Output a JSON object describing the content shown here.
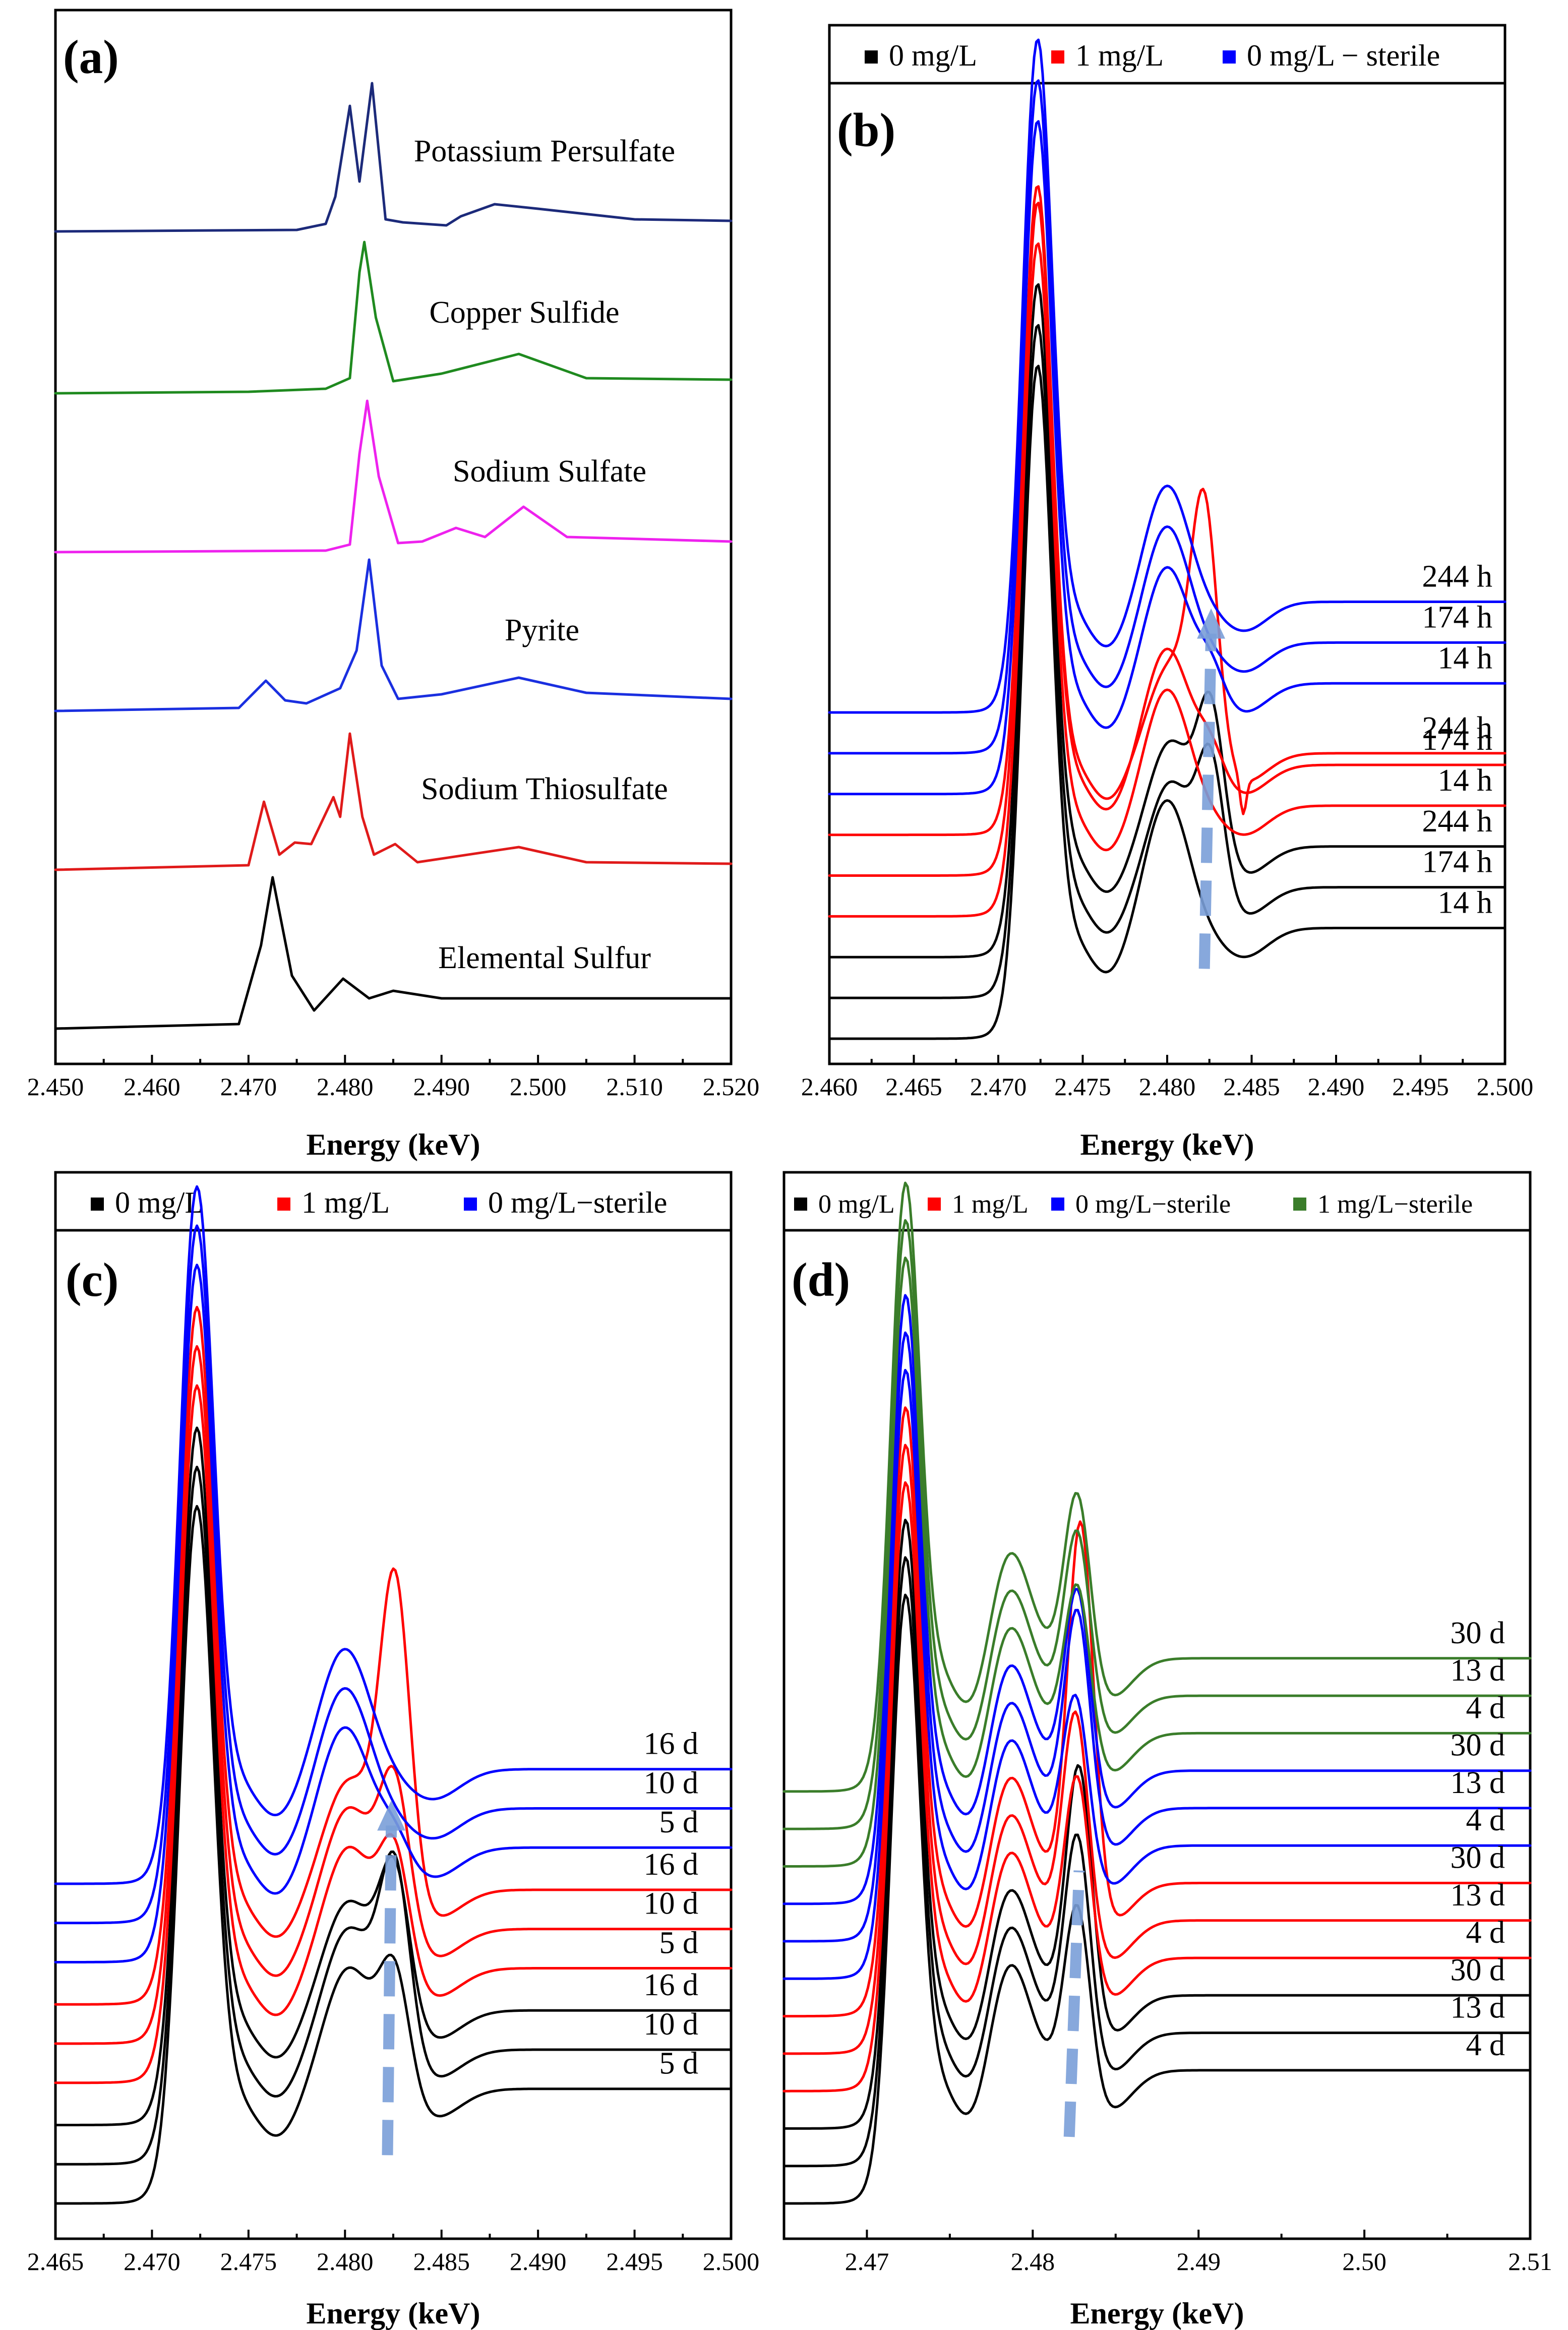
{
  "chart_data": [
    {
      "id": "a",
      "type": "line",
      "panel_label": "(a)",
      "xlabel": "Energy (keV)",
      "ylabel": "",
      "xlim": [
        2.45,
        2.52
      ],
      "xticks": [
        "2.450",
        "2.460",
        "2.470",
        "2.480",
        "2.490",
        "2.500",
        "2.510",
        "2.520"
      ],
      "legend": [],
      "series": [
        {
          "name": "Potassium Persulfate",
          "color": "#1c2a7a",
          "x": [
            2.45,
            2.475,
            2.478,
            2.479,
            2.4805,
            2.4815,
            2.4828,
            2.4842,
            2.486,
            2.4905,
            2.492,
            2.4955,
            2.5,
            2.51,
            2.52
          ],
          "y": [
            0.02,
            0.03,
            0.07,
            0.25,
            0.85,
            0.35,
            1.0,
            0.1,
            0.08,
            0.06,
            0.12,
            0.2,
            0.17,
            0.1,
            0.09
          ]
        },
        {
          "name": "Copper Sulfide",
          "color": "#1f8a1f",
          "x": [
            2.45,
            2.47,
            2.478,
            2.4805,
            2.4815,
            2.482,
            2.4832,
            2.485,
            2.49,
            2.498,
            2.505,
            2.52
          ],
          "y": [
            0.0,
            0.01,
            0.03,
            0.1,
            0.8,
            1.0,
            0.5,
            0.08,
            0.13,
            0.26,
            0.1,
            0.09
          ]
        },
        {
          "name": "Sodium Sulfate",
          "color": "#ee22ee",
          "x": [
            2.45,
            2.478,
            2.4805,
            2.4815,
            2.4823,
            2.4835,
            2.4855,
            2.488,
            2.4915,
            2.4945,
            2.4985,
            2.503,
            2.52
          ],
          "y": [
            0.0,
            0.01,
            0.05,
            0.65,
            1.0,
            0.5,
            0.06,
            0.07,
            0.16,
            0.1,
            0.3,
            0.1,
            0.07
          ]
        },
        {
          "name": "Pyrite",
          "color": "#1a2fe0",
          "x": [
            2.45,
            2.469,
            2.4718,
            2.4738,
            2.476,
            2.4795,
            2.4812,
            2.4825,
            2.4838,
            2.4855,
            2.49,
            2.498,
            2.505,
            2.52
          ],
          "y": [
            0.0,
            0.02,
            0.2,
            0.07,
            0.05,
            0.15,
            0.4,
            1.0,
            0.3,
            0.08,
            0.11,
            0.22,
            0.12,
            0.08
          ]
        },
        {
          "name": "Sodium Thiosulfate",
          "color": "#e01a1a",
          "x": [
            2.45,
            2.47,
            2.4716,
            2.4732,
            2.4748,
            2.4765,
            2.4788,
            2.4795,
            2.4805,
            2.4818,
            2.483,
            2.4852,
            2.4875,
            2.498,
            2.505,
            2.52
          ],
          "y": [
            0.0,
            0.03,
            0.45,
            0.1,
            0.18,
            0.17,
            0.48,
            0.35,
            0.9,
            0.35,
            0.1,
            0.17,
            0.05,
            0.15,
            0.05,
            0.04
          ]
        },
        {
          "name": "Elemental Sulfur",
          "color": "#000000",
          "x": [
            2.45,
            2.469,
            2.4713,
            2.4725,
            2.4745,
            2.4768,
            2.4798,
            2.4825,
            2.485,
            2.49,
            2.52
          ],
          "y": [
            0.0,
            0.03,
            0.55,
            1.0,
            0.35,
            0.12,
            0.33,
            0.2,
            0.25,
            0.2,
            0.2
          ]
        }
      ]
    },
    {
      "id": "b",
      "type": "line",
      "panel_label": "(b)",
      "xlabel": "Energy (keV)",
      "ylabel": "",
      "xlim": [
        2.46,
        2.5
      ],
      "xticks": [
        "2.460",
        "2.465",
        "2.470",
        "2.475",
        "2.480",
        "2.485",
        "2.490",
        "2.495",
        "2.500"
      ],
      "legend": [
        {
          "label": "0 mg/L",
          "color": "#000000"
        },
        {
          "label": "1 mg/L",
          "color": "#ff0000"
        },
        {
          "label": "0 mg/L − sterile",
          "color": "#0000ff"
        }
      ],
      "arrow": {
        "from": [
          2.4822,
          0.12
        ],
        "to": [
          2.4826,
          0.73
        ]
      },
      "series": [
        {
          "name": "0 mg/L 14 h",
          "label": "14 h",
          "color": "#000000",
          "base": 0.0,
          "baseline": 0.06,
          "main_peak": 1.0,
          "dip": 0.02,
          "shoulder": 0.22,
          "shoulder_x": 2.48,
          "peak2": 0.0,
          "peak2_x": 2.4825,
          "plateau": 0.19,
          "spike": 0.0
        },
        {
          "name": "0 mg/L 174 h",
          "label": "174 h",
          "color": "#000000",
          "base": 0.07,
          "baseline": 0.06,
          "main_peak": 1.0,
          "dip": 0.03,
          "shoulder": 0.18,
          "shoulder_x": 2.4802,
          "peak2": 0.23,
          "peak2_x": 2.4826,
          "plateau": 0.19,
          "spike": 0.0
        },
        {
          "name": "0 mg/L 244 h",
          "label": "244 h",
          "color": "#000000",
          "base": 0.14,
          "baseline": 0.06,
          "main_peak": 1.0,
          "dip": 0.03,
          "shoulder": 0.18,
          "shoulder_x": 2.4802,
          "peak2": 0.25,
          "peak2_x": 2.4826,
          "plateau": 0.19,
          "spike": 0.0
        },
        {
          "name": "1 mg/L 14 h",
          "label": "14 h",
          "color": "#ff0000",
          "base": 0.21,
          "baseline": 0.06,
          "main_peak": 1.0,
          "dip": 0.02,
          "shoulder": 0.2,
          "shoulder_x": 2.48,
          "peak2": 0.0,
          "peak2_x": 2.4825,
          "plateau": 0.19,
          "spike": 0.0
        },
        {
          "name": "1 mg/L 174 h",
          "label": "174 h",
          "color": "#ff0000",
          "base": 0.28,
          "baseline": 0.06,
          "main_peak": 1.0,
          "dip": 0.02,
          "shoulder": 0.2,
          "shoulder_x": 2.48,
          "peak2": 0.05,
          "peak2_x": 2.4826,
          "plateau": 0.19,
          "spike": 0.0
        },
        {
          "name": "1 mg/L 244 h",
          "label": "244 h",
          "color": "#ff0000",
          "base": 0.35,
          "baseline": 0.06,
          "main_peak": 1.0,
          "dip": 0.04,
          "shoulder": 0.15,
          "shoulder_x": 2.4802,
          "peak2": 0.42,
          "peak2_x": 2.4822,
          "plateau": 0.14,
          "spike": 0.06
        },
        {
          "name": "0 mg/L − sterile 14 h",
          "label": "14 h",
          "color": "#0000ff",
          "base": 0.42,
          "baseline": 0.06,
          "main_peak": 1.0,
          "dip": 0.02,
          "shoulder": 0.2,
          "shoulder_x": 2.48,
          "peak2": 0.05,
          "peak2_x": 2.4826,
          "plateau": 0.19,
          "spike": 0.0
        },
        {
          "name": "0 mg/L − sterile 174 h",
          "label": "174 h",
          "color": "#0000ff",
          "base": 0.49,
          "baseline": 0.06,
          "main_peak": 1.0,
          "dip": 0.02,
          "shoulder": 0.2,
          "shoulder_x": 2.48,
          "peak2": 0.0,
          "peak2_x": 2.4825,
          "plateau": 0.19,
          "spike": 0.0
        },
        {
          "name": "0 mg/L − sterile 244 h",
          "label": "244 h",
          "color": "#0000ff",
          "base": 0.56,
          "baseline": 0.06,
          "main_peak": 1.0,
          "dip": 0.02,
          "shoulder": 0.2,
          "shoulder_x": 2.48,
          "peak2": 0.0,
          "peak2_x": 2.4825,
          "plateau": 0.19,
          "spike": 0.0
        }
      ]
    },
    {
      "id": "c",
      "type": "line",
      "panel_label": "(c)",
      "xlabel": "Energy (keV)",
      "ylabel": "",
      "xlim": [
        2.465,
        2.5
      ],
      "xticks": [
        "2.465",
        "2.470",
        "2.475",
        "2.480",
        "2.485",
        "2.490",
        "2.495",
        "2.500"
      ],
      "legend": [
        {
          "label": "0 mg/L",
          "color": "#000000"
        },
        {
          "label": "1 mg/L",
          "color": "#ff0000"
        },
        {
          "label": "0 mg/L−sterile",
          "color": "#0000ff"
        }
      ],
      "arrow": {
        "from": [
          2.4822,
          0.08
        ],
        "to": [
          2.4824,
          0.66
        ]
      },
      "series": [
        {
          "name": "0 mg/L 5 d",
          "label": "5 d",
          "color": "#000000",
          "base": 0.0,
          "baseline": 0.06,
          "main_peak": 1.0,
          "dip": 0.03,
          "shoulder": 0.2,
          "shoulder_x": 2.4802,
          "peak2": 0.2,
          "peak2_x": 2.4826,
          "plateau": 0.19,
          "spike": 0.0
        },
        {
          "name": "0 mg/L 10 d",
          "label": "10 d",
          "color": "#000000",
          "base": 0.065,
          "baseline": 0.06,
          "main_peak": 1.0,
          "dip": 0.03,
          "shoulder": 0.2,
          "shoulder_x": 2.4802,
          "peak2": 0.31,
          "peak2_x": 2.4826,
          "plateau": 0.19,
          "spike": 0.0
        },
        {
          "name": "0 mg/L 16 d",
          "label": "16 d",
          "color": "#000000",
          "base": 0.13,
          "baseline": 0.06,
          "main_peak": 1.0,
          "dip": 0.03,
          "shoulder": 0.18,
          "shoulder_x": 2.4802,
          "peak2": 0.24,
          "peak2_x": 2.4826,
          "plateau": 0.19,
          "spike": 0.0
        },
        {
          "name": "1 mg/L 5 d",
          "label": "5 d",
          "color": "#ff0000",
          "base": 0.2,
          "baseline": 0.06,
          "main_peak": 1.0,
          "dip": 0.03,
          "shoulder": 0.2,
          "shoulder_x": 2.4802,
          "peak2": 0.2,
          "peak2_x": 2.4826,
          "plateau": 0.19,
          "spike": 0.0
        },
        {
          "name": "1 mg/L 10 d",
          "label": "10 d",
          "color": "#ff0000",
          "base": 0.265,
          "baseline": 0.06,
          "main_peak": 1.0,
          "dip": 0.03,
          "shoulder": 0.2,
          "shoulder_x": 2.4802,
          "peak2": 0.25,
          "peak2_x": 2.4826,
          "plateau": 0.19,
          "spike": 0.0
        },
        {
          "name": "1 mg/L 16 d",
          "label": "16 d",
          "color": "#ff0000",
          "base": 0.33,
          "baseline": 0.06,
          "main_peak": 1.0,
          "dip": 0.03,
          "shoulder": 0.18,
          "shoulder_x": 2.4802,
          "peak2": 0.52,
          "peak2_x": 2.4826,
          "plateau": 0.19,
          "spike": 0.0
        },
        {
          "name": "0 mg/L−sterile 5 d",
          "label": "5 d",
          "color": "#0000ff",
          "base": 0.4,
          "baseline": 0.06,
          "main_peak": 1.0,
          "dip": 0.03,
          "shoulder": 0.2,
          "shoulder_x": 2.48,
          "peak2": 0.04,
          "peak2_x": 2.4826,
          "plateau": 0.19,
          "spike": 0.0
        },
        {
          "name": "0 mg/L−sterile 10 d",
          "label": "10 d",
          "color": "#0000ff",
          "base": 0.465,
          "baseline": 0.06,
          "main_peak": 1.0,
          "dip": 0.03,
          "shoulder": 0.2,
          "shoulder_x": 2.48,
          "peak2": 0.0,
          "peak2_x": 2.4825,
          "plateau": 0.19,
          "spike": 0.0
        },
        {
          "name": "0 mg/L−sterile 16 d",
          "label": "16 d",
          "color": "#0000ff",
          "base": 0.53,
          "baseline": 0.06,
          "main_peak": 1.0,
          "dip": 0.03,
          "shoulder": 0.2,
          "shoulder_x": 2.48,
          "peak2": 0.0,
          "peak2_x": 2.4825,
          "plateau": 0.19,
          "spike": 0.0
        }
      ]
    },
    {
      "id": "d",
      "type": "line",
      "panel_label": "(d)",
      "xlabel": "Energy (keV)",
      "ylabel": "",
      "xlim": [
        2.465,
        2.51
      ],
      "xticks": [
        "2.47",
        "2.48",
        "2.49",
        "2.50",
        "2.51"
      ],
      "legend": [
        {
          "label": "0 mg/L",
          "color": "#000000"
        },
        {
          "label": "1 mg/L",
          "color": "#ff0000"
        },
        {
          "label": "0 mg/L−sterile",
          "color": "#0000ff"
        },
        {
          "label": "1 mg/L−sterile",
          "color": "#3a7d2a"
        }
      ],
      "arrow": {
        "from": [
          2.4822,
          0.08
        ],
        "to": [
          2.4828,
          0.4
        ]
      },
      "arrow_style": "thin",
      "series": [
        {
          "name": "0 mg/L 4 d",
          "label": "4 d",
          "color": "#000000",
          "base": 0.0,
          "baseline": 0.05,
          "main_peak": 0.6,
          "dip": 0.04,
          "shoulder": 0.14,
          "shoulder_x": 2.4785,
          "peak2": 0.22,
          "peak2_x": 2.4827,
          "plateau": 0.16,
          "spike": 0.0
        },
        {
          "name": "0 mg/L 13 d",
          "label": "13 d",
          "color": "#000000",
          "base": 0.045,
          "baseline": 0.05,
          "main_peak": 0.6,
          "dip": 0.04,
          "shoulder": 0.14,
          "shoulder_x": 2.4785,
          "peak2": 0.26,
          "peak2_x": 2.4827,
          "plateau": 0.16,
          "spike": 0.0
        },
        {
          "name": "0 mg/L 30 d",
          "label": "30 d",
          "color": "#000000",
          "base": 0.09,
          "baseline": 0.05,
          "main_peak": 0.6,
          "dip": 0.04,
          "shoulder": 0.14,
          "shoulder_x": 2.4785,
          "peak2": 0.3,
          "peak2_x": 2.4828,
          "plateau": 0.16,
          "spike": 0.0
        },
        {
          "name": "1 mg/L 4 d",
          "label": "4 d",
          "color": "#ff0000",
          "base": 0.135,
          "baseline": 0.05,
          "main_peak": 0.6,
          "dip": 0.04,
          "shoulder": 0.14,
          "shoulder_x": 2.4785,
          "peak2": 0.24,
          "peak2_x": 2.4827,
          "plateau": 0.16,
          "spike": 0.0
        },
        {
          "name": "1 mg/L 13 d",
          "label": "13 d",
          "color": "#ff0000",
          "base": 0.18,
          "baseline": 0.05,
          "main_peak": 0.6,
          "dip": 0.04,
          "shoulder": 0.14,
          "shoulder_x": 2.4785,
          "peak2": 0.27,
          "peak2_x": 2.4826,
          "plateau": 0.16,
          "spike": 0.0
        },
        {
          "name": "1 mg/L 30 d",
          "label": "30 d",
          "color": "#ff0000",
          "base": 0.225,
          "baseline": 0.05,
          "main_peak": 0.6,
          "dip": 0.04,
          "shoulder": 0.14,
          "shoulder_x": 2.4785,
          "peak2": 0.46,
          "peak2_x": 2.4829,
          "plateau": 0.16,
          "spike": 0.0
        },
        {
          "name": "0 mg/L−sterile 4 d",
          "label": "4 d",
          "color": "#0000ff",
          "base": 0.27,
          "baseline": 0.05,
          "main_peak": 0.6,
          "dip": 0.04,
          "shoulder": 0.14,
          "shoulder_x": 2.4785,
          "peak2": 0.2,
          "peak2_x": 2.4826,
          "plateau": 0.16,
          "spike": 0.0
        },
        {
          "name": "0 mg/L−sterile 13 d",
          "label": "13 d",
          "color": "#0000ff",
          "base": 0.315,
          "baseline": 0.05,
          "main_peak": 0.6,
          "dip": 0.04,
          "shoulder": 0.14,
          "shoulder_x": 2.4785,
          "peak2": 0.26,
          "peak2_x": 2.4827,
          "plateau": 0.16,
          "spike": 0.0
        },
        {
          "name": "0 mg/L−sterile 30 d",
          "label": "30 d",
          "color": "#0000ff",
          "base": 0.36,
          "baseline": 0.05,
          "main_peak": 0.6,
          "dip": 0.04,
          "shoulder": 0.14,
          "shoulder_x": 2.4785,
          "peak2": 0.24,
          "peak2_x": 2.4827,
          "plateau": 0.16,
          "spike": 0.0
        },
        {
          "name": "1 mg/L−sterile 4 d",
          "label": "4 d",
          "color": "#3a7d2a",
          "base": 0.405,
          "baseline": 0.05,
          "main_peak": 0.6,
          "dip": 0.04,
          "shoulder": 0.14,
          "shoulder_x": 2.4785,
          "peak2": 0.2,
          "peak2_x": 2.4827,
          "plateau": 0.16,
          "spike": 0.0
        },
        {
          "name": "1 mg/L−sterile 13 d",
          "label": "13 d",
          "color": "#3a7d2a",
          "base": 0.45,
          "baseline": 0.05,
          "main_peak": 0.6,
          "dip": 0.04,
          "shoulder": 0.14,
          "shoulder_x": 2.4785,
          "peak2": 0.22,
          "peak2_x": 2.4827,
          "plateau": 0.16,
          "spike": 0.0
        },
        {
          "name": "1 mg/L−sterile 30 d",
          "label": "30 d",
          "color": "#3a7d2a",
          "base": 0.495,
          "baseline": 0.05,
          "main_peak": 0.6,
          "dip": 0.04,
          "shoulder": 0.14,
          "shoulder_x": 2.4785,
          "peak2": 0.22,
          "peak2_x": 2.4827,
          "plateau": 0.16,
          "spike": 0.0
        }
      ]
    }
  ]
}
